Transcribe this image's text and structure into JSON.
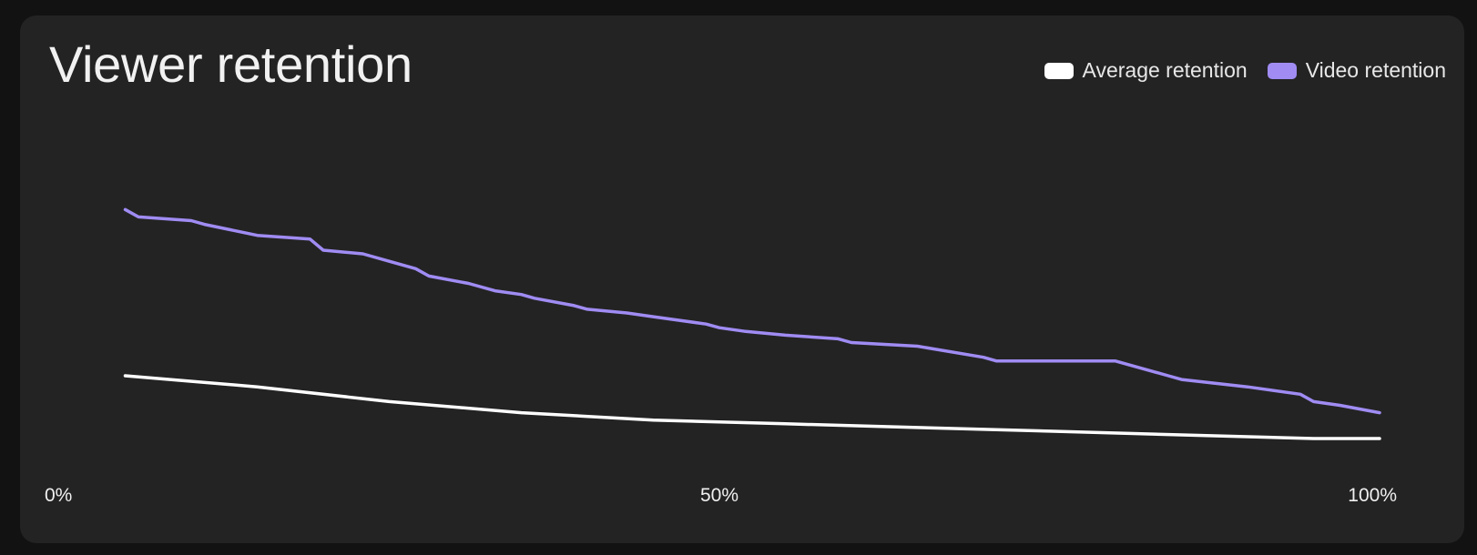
{
  "chart_data": {
    "type": "line",
    "title": "Viewer retention",
    "xlabel": "",
    "ylabel": "",
    "xlim": [
      0,
      100
    ],
    "x_ticks": [
      "0%",
      "50%",
      "100%"
    ],
    "ylim": [
      0,
      100
    ],
    "grid": false,
    "legend": "top-right",
    "series": [
      {
        "name": "Average retention",
        "color": "#ffffff",
        "x": [
          5,
          15,
          25,
          35,
          45,
          55,
          65,
          75,
          85,
          95,
          100
        ],
        "y": [
          33,
          30,
          26,
          23,
          21,
          20,
          19,
          18,
          17,
          16,
          16
        ]
      },
      {
        "name": "Video retention",
        "color": "#a08cf3",
        "x": [
          5,
          6,
          10,
          11,
          15,
          19,
          20,
          23,
          25,
          27,
          28,
          31,
          33,
          35,
          36,
          39,
          40,
          43,
          45,
          49,
          50,
          52,
          55,
          59,
          60,
          65,
          70,
          71,
          73,
          75,
          80,
          84,
          85,
          90,
          94,
          95,
          97,
          100
        ],
        "y": [
          78,
          76,
          75,
          74,
          71,
          70,
          67,
          66,
          64,
          62,
          60,
          58,
          56,
          55,
          54,
          52,
          51,
          50,
          49,
          47,
          46,
          45,
          44,
          43,
          42,
          41,
          38,
          37,
          37,
          37,
          37,
          33,
          32,
          30,
          28,
          26,
          25,
          23
        ]
      }
    ]
  }
}
